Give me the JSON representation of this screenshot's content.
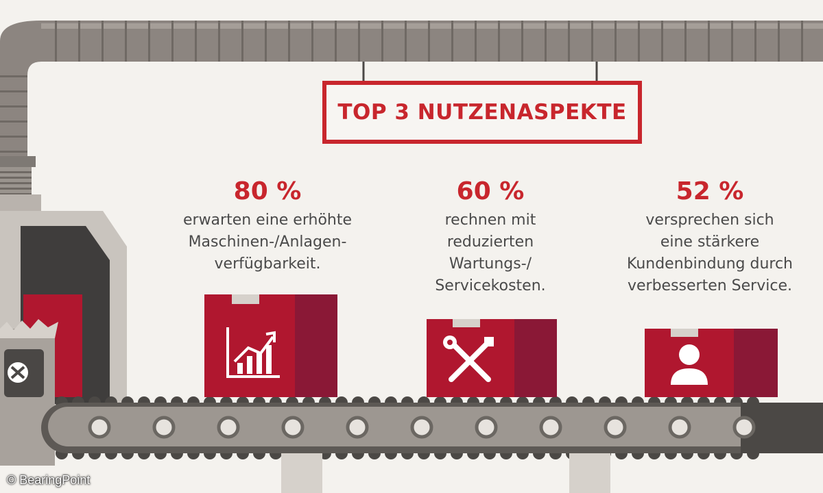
{
  "title": "TOP 3 NUTZENASPEKTE",
  "stats": [
    {
      "percent": "80 %",
      "lines": [
        "erwarten eine erhöhte",
        "Maschinen-/Anlagen-",
        "verfügbarkeit."
      ],
      "icon": "growth-chart-icon"
    },
    {
      "percent": "60 %",
      "lines": [
        "rechnen mit",
        "reduzierten",
        "Wartungs-/",
        "Servicekosten."
      ],
      "icon": "wrench-screwdriver-icon"
    },
    {
      "percent": "52 %",
      "lines": [
        "versprechen sich",
        "eine stärkere",
        "Kundenbindung durch",
        "verbesserten Service."
      ],
      "icon": "customer-icon"
    }
  ],
  "credit": "© BearingPoint",
  "colors": {
    "accent": "#c8262d",
    "box": "#b0172f",
    "box_dark": "#8a1836",
    "machine": "#a8a29c",
    "conveyor": "#6b6762"
  }
}
